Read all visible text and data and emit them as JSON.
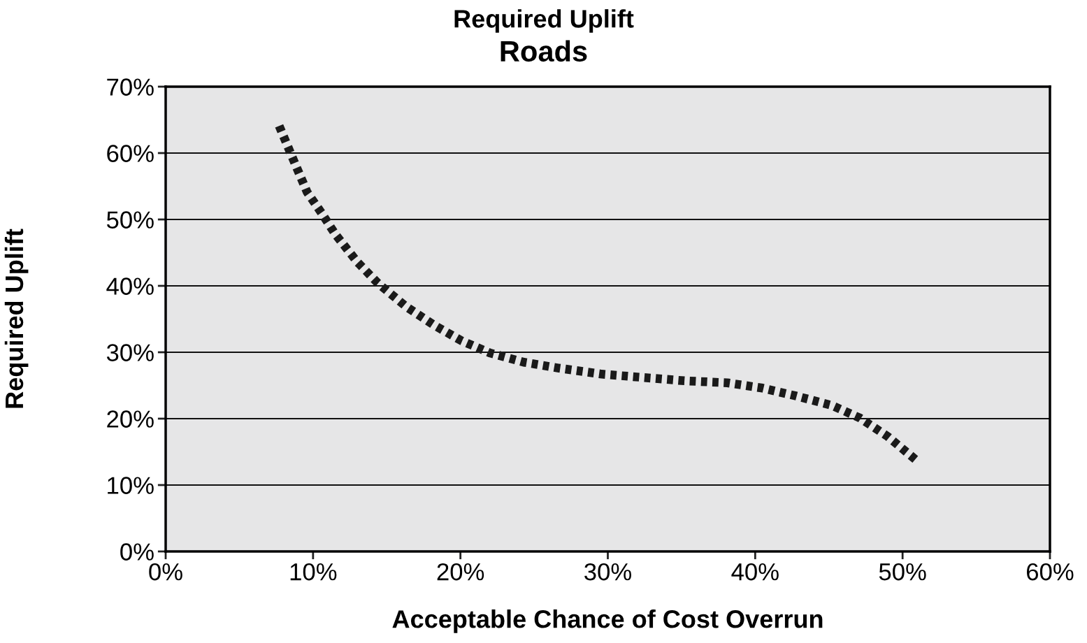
{
  "chart_data": {
    "type": "line",
    "title": "Required Uplift",
    "subtitle": "Roads",
    "xlabel": "Acceptable Chance of Cost Overrun",
    "ylabel": "Required Uplift",
    "series": [
      {
        "color": "#1a1a1a",
        "x": [
          7.7,
          8.7,
          9.6,
          10.6,
          11.5,
          13.0,
          14.4,
          16.3,
          18.2,
          20.1,
          22.0,
          24.3,
          26.7,
          29.6,
          32.4,
          35.2,
          38.1,
          40.5,
          42.8,
          45.2,
          47.1,
          49.0,
          50.9
        ],
        "values": [
          64.1,
          58.8,
          54.1,
          50.9,
          47.8,
          43.6,
          40.4,
          36.9,
          34.1,
          31.7,
          29.9,
          28.5,
          27.6,
          26.7,
          26.2,
          25.7,
          25.4,
          24.6,
          23.4,
          22.0,
          20.1,
          17.3,
          13.8
        ]
      }
    ],
    "xlim": [
      0,
      60
    ],
    "xticks": [
      {
        "value": 0,
        "label": "0%"
      },
      {
        "value": 10,
        "label": "10%"
      },
      {
        "value": 20,
        "label": "20%"
      },
      {
        "value": 30,
        "label": "30%"
      },
      {
        "value": 40,
        "label": "40%"
      },
      {
        "value": 50,
        "label": "50%"
      },
      {
        "value": 60,
        "label": "60%"
      }
    ],
    "ylim": [
      0,
      70
    ],
    "yticks": [
      {
        "value": 0,
        "label": "0%"
      },
      {
        "value": 10,
        "label": "10%"
      },
      {
        "value": 20,
        "label": "20%"
      },
      {
        "value": 30,
        "label": "30%"
      },
      {
        "value": 40,
        "label": "40%"
      },
      {
        "value": 50,
        "label": "50%"
      },
      {
        "value": 60,
        "label": "60%"
      },
      {
        "value": 70,
        "label": "70%"
      }
    ],
    "grid": "y",
    "line_style": "dotted",
    "marker": "none"
  }
}
